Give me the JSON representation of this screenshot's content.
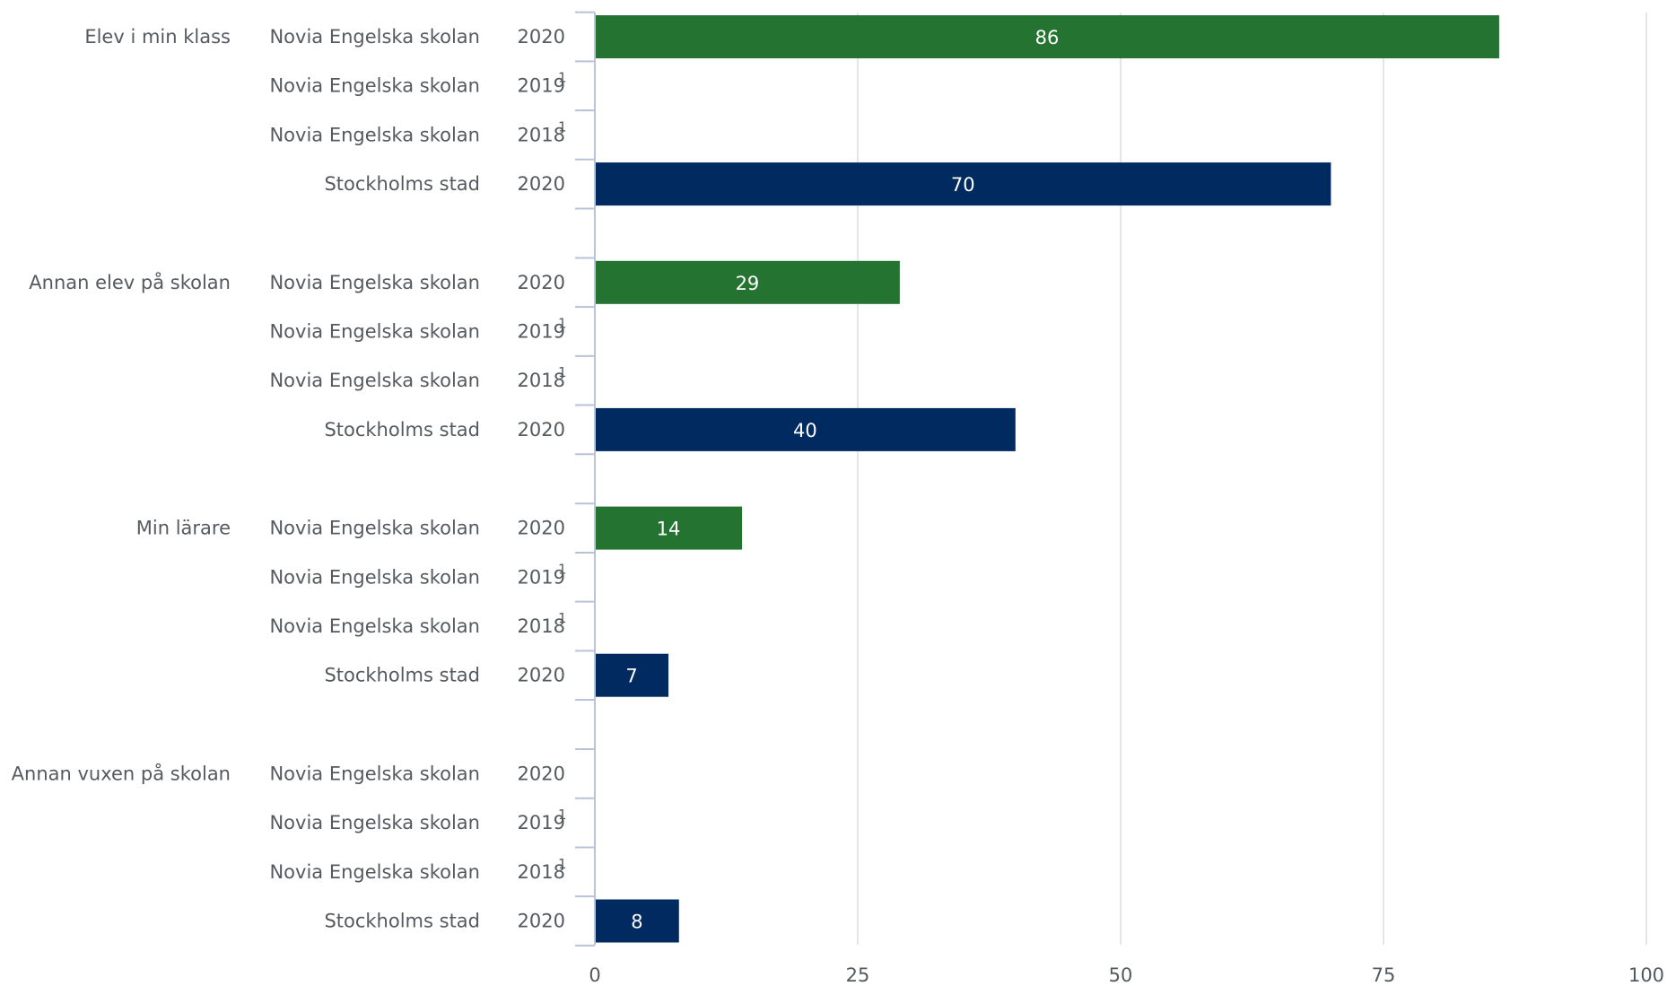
{
  "chart_data": {
    "type": "bar",
    "orientation": "horizontal",
    "xlim": [
      0,
      100
    ],
    "xticks": [
      0,
      25,
      50,
      75,
      100
    ],
    "grid": true,
    "colors": {
      "school": "#257330",
      "city": "#012a61",
      "gridline": "#d9dde3",
      "axis": "#b7c3d8",
      "text": "#555a5f"
    },
    "groups": [
      {
        "label": "Elev i min klass",
        "rows": [
          {
            "entity": "Novia Engelska skolan",
            "year": "2020",
            "note": "",
            "value": 86,
            "color": "school"
          },
          {
            "entity": "Novia Engelska skolan",
            "year": "2019",
            "note": "1",
            "value": null,
            "color": "school"
          },
          {
            "entity": "Novia Engelska skolan",
            "year": "2018",
            "note": "1",
            "value": null,
            "color": "school"
          },
          {
            "entity": "Stockholms stad",
            "year": "2020",
            "note": "",
            "value": 70,
            "color": "city"
          }
        ]
      },
      {
        "label": "Annan elev på skolan",
        "rows": [
          {
            "entity": "Novia Engelska skolan",
            "year": "2020",
            "note": "",
            "value": 29,
            "color": "school"
          },
          {
            "entity": "Novia Engelska skolan",
            "year": "2019",
            "note": "1",
            "value": null,
            "color": "school"
          },
          {
            "entity": "Novia Engelska skolan",
            "year": "2018",
            "note": "1",
            "value": null,
            "color": "school"
          },
          {
            "entity": "Stockholms stad",
            "year": "2020",
            "note": "",
            "value": 40,
            "color": "city"
          }
        ]
      },
      {
        "label": "Min lärare",
        "rows": [
          {
            "entity": "Novia Engelska skolan",
            "year": "2020",
            "note": "",
            "value": 14,
            "color": "school"
          },
          {
            "entity": "Novia Engelska skolan",
            "year": "2019",
            "note": "1",
            "value": null,
            "color": "school"
          },
          {
            "entity": "Novia Engelska skolan",
            "year": "2018",
            "note": "1",
            "value": null,
            "color": "school"
          },
          {
            "entity": "Stockholms stad",
            "year": "2020",
            "note": "",
            "value": 7,
            "color": "city"
          }
        ]
      },
      {
        "label": "Annan vuxen på skolan",
        "rows": [
          {
            "entity": "Novia Engelska skolan",
            "year": "2020",
            "note": "",
            "value": null,
            "color": "school"
          },
          {
            "entity": "Novia Engelska skolan",
            "year": "2019",
            "note": "1",
            "value": null,
            "color": "school"
          },
          {
            "entity": "Novia Engelska skolan",
            "year": "2018",
            "note": "1",
            "value": null,
            "color": "school"
          },
          {
            "entity": "Stockholms stad",
            "year": "2020",
            "note": "",
            "value": 8,
            "color": "city"
          }
        ]
      }
    ]
  }
}
